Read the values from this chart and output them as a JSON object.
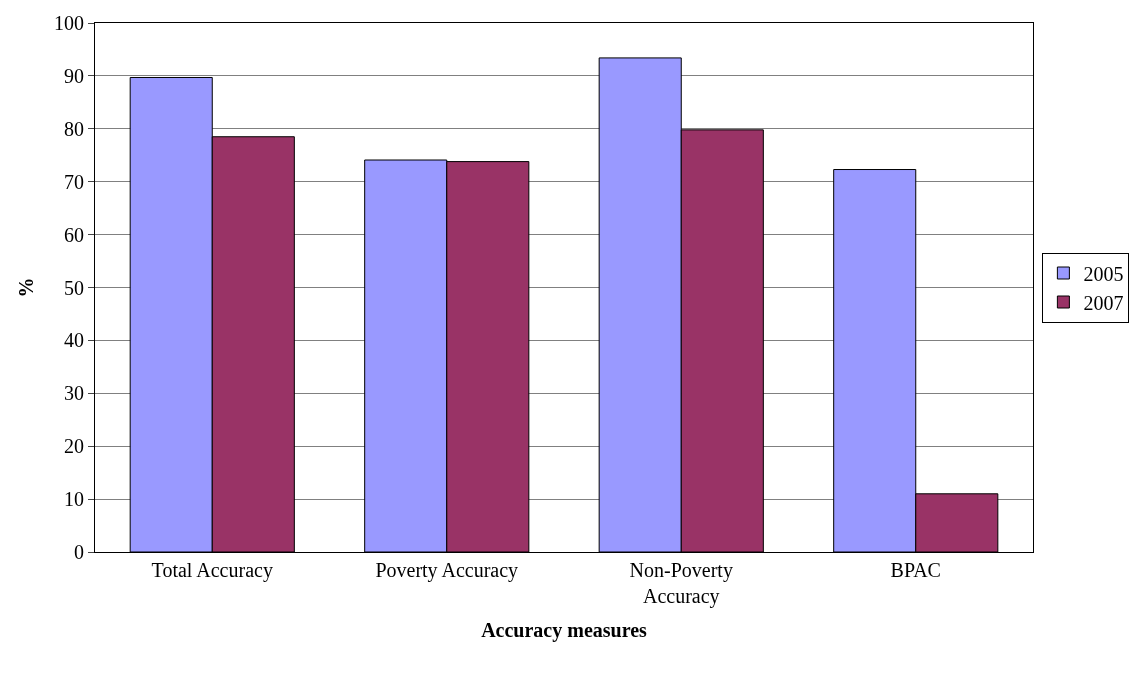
{
  "chart_data": {
    "type": "bar",
    "xlabel": "Accuracy measures",
    "ylabel": "%",
    "categories": [
      "Total Accuracy",
      "Poverty Accuracy",
      "Non-Poverty Accuracy",
      "BPAC"
    ],
    "series": [
      {
        "name": "2005",
        "color": "#9999ff",
        "values": [
          89.7,
          74.1,
          93.4,
          72.3
        ]
      },
      {
        "name": "2007",
        "color": "#993366",
        "values": [
          78.5,
          73.8,
          79.8,
          11.0
        ]
      }
    ],
    "ylim": [
      0,
      100
    ],
    "yticks": [
      0,
      10,
      20,
      30,
      40,
      50,
      60,
      70,
      80,
      90,
      100
    ],
    "grid": "y",
    "legend": "right"
  }
}
